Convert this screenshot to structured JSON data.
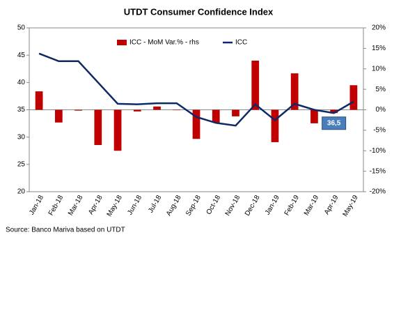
{
  "chart_data": {
    "type": "bar-line",
    "title": "UTDT Consumer Confidence Index",
    "source": "Source: Banco Mariva based on UTDT",
    "categories": [
      "Jan-18",
      "Feb-18",
      "Mar-18",
      "Apr-18",
      "May-18",
      "Jun-18",
      "Jul-18",
      "Aug-18",
      "Sep-18",
      "Oct-18",
      "Nov-18",
      "Dec-18",
      "Jan-19",
      "Feb-19",
      "Mar-19",
      "Apr-19",
      "May-19"
    ],
    "series": [
      {
        "name": "ICC - MoM Var.% - rhs",
        "type": "bar",
        "axis": "y2",
        "color": "#c00000",
        "values": [
          4.5,
          -3.1,
          -0.2,
          -8.6,
          -10.0,
          -0.4,
          0.8,
          -0.1,
          -7.1,
          -3.1,
          -1.6,
          12.0,
          -7.9,
          8.9,
          -3.3,
          -0.8,
          6.0
        ]
      },
      {
        "name": "ICC",
        "type": "line",
        "color": "#0e2a66",
        "values": [
          45.3,
          43.9,
          43.9,
          40.0,
          36.1,
          36.0,
          36.2,
          36.2,
          33.7,
          32.6,
          32.1,
          36.0,
          33.1,
          36.1,
          35.0,
          34.4,
          36.5
        ]
      }
    ],
    "annotation": {
      "text": "36,5",
      "value": 36.5
    },
    "ylim": [
      20,
      50
    ],
    "yticks": [
      20,
      25,
      30,
      35,
      40,
      45,
      50
    ],
    "y2lim": [
      -20,
      20
    ],
    "y2ticks": [
      {
        "value": -20,
        "label": "-20%"
      },
      {
        "value": -15,
        "label": "-15%"
      },
      {
        "value": -10,
        "label": "-10%"
      },
      {
        "value": -5,
        "label": "-5%"
      },
      {
        "value": 0,
        "label": "0%"
      },
      {
        "value": 5,
        "label": "5%"
      },
      {
        "value": 10,
        "label": "10%"
      },
      {
        "value": 15,
        "label": "15%"
      },
      {
        "value": 20,
        "label": "20%"
      }
    ],
    "legend": "top"
  }
}
